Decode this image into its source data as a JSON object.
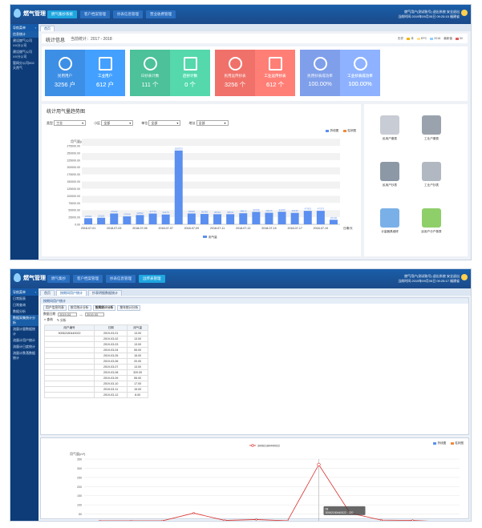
{
  "app": {
    "name": "燃气管理"
  },
  "screen1": {
    "nav": [
      "燃气集抄系统",
      "客户档案管理",
      "抄表信息管理",
      "营业收费管理"
    ],
    "user": {
      "line1": "燃气用户(测试账号)   退出系统   安全退出",
      "line2": "当前时间:2019年09月05日 09:25:15   福建省"
    },
    "sidebar": {
      "head": "导航菜单",
      "items": [
        "信息统计",
        "建设燃气公司XX分公司",
        "建设燃气公司XX分公司",
        "管网分公司002天然气"
      ]
    },
    "tabs": [
      "首页"
    ],
    "stats": {
      "title": "统计信息",
      "period": "当前统计：2017 - 2018",
      "legend": [
        "历史",
        "本",
        "EPC",
        "2018",
        "最新值",
        "50"
      ],
      "cards": [
        {
          "label": "民用用户",
          "value": "3256 户",
          "color": "#3d8fe6",
          "icon": "users-icon"
        },
        {
          "label": "工业用户",
          "value": "612 户",
          "color": "#3d8fe6",
          "icon": "factory-icon"
        },
        {
          "label": "日抄表计数",
          "value": "111 个",
          "color": "#4cc19a",
          "icon": "bar-chart-icon"
        },
        {
          "label": "后抄计数",
          "value": "0 个",
          "color": "#4cc19a",
          "icon": "line-chart-icon"
        },
        {
          "label": "民用远传抄表",
          "value": "3256 个",
          "color": "#f0716a",
          "icon": "cloud-upload-icon"
        },
        {
          "label": "工业远传抄表",
          "value": "612 个",
          "color": "#f0716a",
          "icon": "box-icon"
        },
        {
          "label": "民用抄表成功率",
          "value": "100.00%",
          "color": "#7f9fea",
          "icon": "check-circle-icon"
        },
        {
          "label": "工业抄表成功率",
          "value": "100.00%",
          "color": "#7f9fea",
          "icon": "check-circle-icon"
        }
      ]
    },
    "chart_panel": {
      "title": "统计用气量趋势图",
      "filters": [
        {
          "label": "类型",
          "value": "工业"
        },
        {
          "label": "小区",
          "value": "全部"
        },
        {
          "label": "单位",
          "value": "全部"
        },
        {
          "label": "地址",
          "value": "全部"
        }
      ],
      "buttons": [
        "折线图",
        "柱状图"
      ]
    },
    "side": [
      "民用户缴费",
      "工业户缴费",
      "民用户抄表",
      "工业户抄表",
      "计量器具维修",
      "民用户分户核算"
    ]
  },
  "screen2": {
    "nav": [
      "燃气集抄",
      "客户档案管理",
      "抄表信息管理",
      "远传表管理"
    ],
    "user": {
      "line1": "燃气用户(测试账号)  退出系统  安全退出",
      "line2": "当前时间:2019年09月05日 09:25:17   福建省"
    },
    "sidebar": {
      "head": "导航菜单",
      "items": [
        "日常报表",
        "日常查询",
        "数据分析",
        "数据采集统计分析",
        "流量计量数据统计",
        "流量计用户统计",
        "流量计日度统计",
        "流量计跌落数据统计"
      ]
    },
    "tabs": [
      "首页",
      "按期间用户统计",
      "抄表明细数据统计"
    ],
    "panel_head": "按期间用户统计",
    "subtabs": [
      "用户信息列表",
      "按月统计分析",
      "按周统计分析",
      "按年统计分析"
    ],
    "date_label": "数据日期",
    "date_from": "2019-03",
    "date_to": "2019-03",
    "actions": [
      "查询",
      "分析"
    ],
    "table": {
      "headers": [
        "用户编号",
        "日期",
        "用气量"
      ],
      "user_id": "30062180440022",
      "rows": [
        [
          "2019-03-01",
          "13.00"
        ],
        [
          "2019-03-02",
          "13.00"
        ],
        [
          "2019-03-03",
          "13.00"
        ],
        [
          "2019-03-04",
          "55.00"
        ],
        [
          "2019-03-05",
          "15.00"
        ],
        [
          "2019-03-06",
          "20.00"
        ],
        [
          "2019-03-07",
          "13.00"
        ],
        [
          "2019-03-08",
          "320.00"
        ],
        [
          "2019-03-09",
          "55.00"
        ],
        [
          "2019-03-10",
          "17.00"
        ],
        [
          "2019-03-11",
          "15.00"
        ],
        [
          "2019-03-12",
          "8.00"
        ]
      ]
    },
    "chart_buttons": [
      "折线图",
      "柱状图"
    ]
  },
  "chart_data": [
    {
      "type": "bar",
      "ylabel": "用气量(m³)",
      "xlabel": "日期/天",
      "categories": [
        "2018-07-01",
        "2018-07-02",
        "2018-07-03",
        "2018-07-04",
        "2018-07-05",
        "2018-07-06",
        "2018-07-07",
        "2018-07-08",
        "2018-07-09",
        "2018-07-10",
        "2018-07-11",
        "2018-07-12",
        "2018-07-13",
        "2018-07-14",
        "2018-07-15",
        "2018-07-16",
        "2018-07-17",
        "2018-07-18",
        "2018-07-19",
        "2018-07-20"
      ],
      "tick_labels": [
        "2018-07-01",
        "2018-07-03",
        "2018-07-05",
        "2018-07-07",
        "2018-07-09",
        "2018-07-11",
        "2018-07-13",
        "2018-07-15",
        "2018-07-17",
        "2018-07-19"
      ],
      "values": [
        21501,
        23119,
        37993,
        27940,
        32562,
        37773,
        34473,
        258753,
        38000,
        36330,
        35516,
        35531,
        38813,
        43736,
        40616,
        44150,
        40195,
        47303,
        47373,
        16130
      ],
      "data_labels": [
        "21501",
        "23119",
        "37993",
        "27940",
        "32562",
        "37773",
        "34473",
        "258753",
        "38000",
        "36330",
        "35516",
        "35531",
        "38813",
        "43736",
        "40616",
        "44150",
        "40195",
        "47303",
        "47373",
        "16130"
      ],
      "yticks": [
        "0.00",
        "25000.00",
        "50000.00",
        "75000.00",
        "100000.00",
        "125000.00",
        "150000.00",
        "175000.00",
        "200000.00",
        "225000.00",
        "250000.00",
        "275000.00"
      ],
      "ylim": [
        0,
        275000
      ],
      "legend": [
        "用气量"
      ],
      "series_color": "#5b8ff0"
    },
    {
      "type": "line",
      "ylabel": "用气量(m³)",
      "xlabel": "天",
      "legend": [
        "30062180440022"
      ],
      "categories": [
        "01",
        "02",
        "03",
        "04",
        "05",
        "06",
        "07",
        "08",
        "09",
        "10",
        "11",
        "12"
      ],
      "values": [
        13,
        13,
        13,
        55,
        15,
        20,
        13,
        320,
        55,
        17,
        15,
        8
      ],
      "yticks": [
        "0",
        "50",
        "100",
        "150",
        "200",
        "250",
        "300",
        "350"
      ],
      "ylim": [
        0,
        350
      ],
      "tooltip": {
        "title": "08",
        "text": "30062180440022 : 320"
      },
      "series_color": "#d9302c"
    }
  ]
}
